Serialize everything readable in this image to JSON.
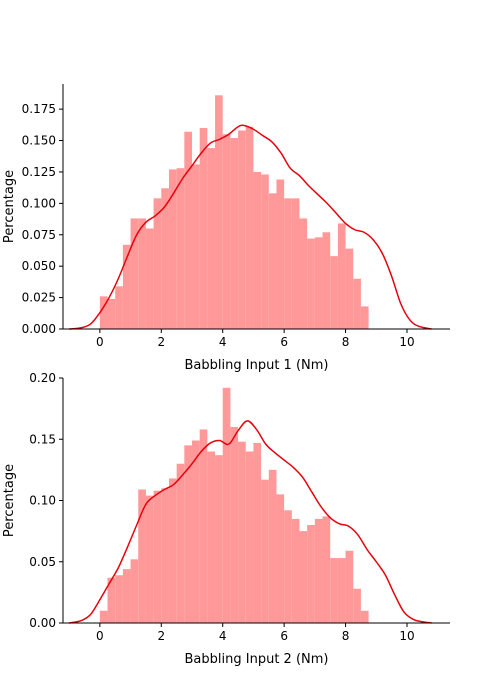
{
  "colors": {
    "bar": "#ff9999",
    "kde": "#e8000b",
    "axis": "#000000"
  },
  "chart_data": [
    {
      "type": "bar",
      "subtype": "histogram-with-kde",
      "xlabel": "Babbling Input 1 (Nm)",
      "ylabel": "Percentage",
      "xlim": [
        -1.2,
        11.4
      ],
      "ylim": [
        0,
        0.195
      ],
      "xticks": [
        0,
        2,
        4,
        6,
        8,
        10
      ],
      "yticks": [
        0.0,
        0.025,
        0.05,
        0.075,
        0.1,
        0.125,
        0.15,
        0.175
      ],
      "ytick_labels": [
        "0.000",
        "0.025",
        "0.050",
        "0.075",
        "0.100",
        "0.125",
        "0.150",
        "0.175"
      ],
      "bin_start": 0.0,
      "bin_width": 0.25,
      "values": [
        0.026,
        0.024,
        0.034,
        0.067,
        0.088,
        0.088,
        0.08,
        0.104,
        0.112,
        0.127,
        0.128,
        0.157,
        0.131,
        0.16,
        0.144,
        0.186,
        0.155,
        0.152,
        0.158,
        0.161,
        0.125,
        0.123,
        0.108,
        0.119,
        0.104,
        0.104,
        0.088,
        0.072,
        0.073,
        0.077,
        0.058,
        0.084,
        0.064,
        0.04,
        0.018
      ],
      "kde_x": [
        -1.0,
        -0.6,
        -0.3,
        0.0,
        0.3,
        0.6,
        0.9,
        1.2,
        1.5,
        1.8,
        2.1,
        2.4,
        2.7,
        3.0,
        3.3,
        3.6,
        3.9,
        4.2,
        4.5,
        4.7,
        5.0,
        5.3,
        5.6,
        5.9,
        6.2,
        6.5,
        6.8,
        7.1,
        7.4,
        7.7,
        8.0,
        8.3,
        8.6,
        8.9,
        9.2,
        9.5,
        9.8,
        10.1,
        10.4,
        10.8
      ],
      "kde_y": [
        0.0,
        0.001,
        0.004,
        0.013,
        0.025,
        0.04,
        0.058,
        0.075,
        0.085,
        0.09,
        0.097,
        0.108,
        0.12,
        0.13,
        0.14,
        0.148,
        0.151,
        0.155,
        0.161,
        0.162,
        0.159,
        0.154,
        0.149,
        0.14,
        0.128,
        0.122,
        0.114,
        0.107,
        0.1,
        0.092,
        0.084,
        0.079,
        0.077,
        0.071,
        0.06,
        0.042,
        0.02,
        0.007,
        0.002,
        0.0
      ]
    },
    {
      "type": "bar",
      "subtype": "histogram-with-kde",
      "xlabel": "Babbling Input 2 (Nm)",
      "ylabel": "Percentage",
      "xlim": [
        -1.2,
        11.4
      ],
      "ylim": [
        0,
        0.2
      ],
      "xticks": [
        0,
        2,
        4,
        6,
        8,
        10
      ],
      "yticks": [
        0.0,
        0.05,
        0.1,
        0.15,
        0.2
      ],
      "ytick_labels": [
        "0.00",
        "0.05",
        "0.10",
        "0.15",
        "0.20"
      ],
      "bin_start": 0.0,
      "bin_width": 0.25,
      "values": [
        0.01,
        0.037,
        0.039,
        0.044,
        0.052,
        0.109,
        0.104,
        0.108,
        0.11,
        0.118,
        0.13,
        0.145,
        0.149,
        0.158,
        0.14,
        0.137,
        0.192,
        0.16,
        0.148,
        0.14,
        0.147,
        0.117,
        0.125,
        0.105,
        0.092,
        0.085,
        0.075,
        0.08,
        0.085,
        0.087,
        0.053,
        0.053,
        0.059,
        0.028,
        0.01
      ],
      "kde_x": [
        -1.0,
        -0.6,
        -0.3,
        0.0,
        0.3,
        0.6,
        0.9,
        1.2,
        1.5,
        1.8,
        2.1,
        2.4,
        2.7,
        3.0,
        3.3,
        3.6,
        3.9,
        4.2,
        4.5,
        4.8,
        5.1,
        5.4,
        5.7,
        6.0,
        6.3,
        6.6,
        6.9,
        7.2,
        7.5,
        7.8,
        8.1,
        8.4,
        8.7,
        9.0,
        9.3,
        9.6,
        9.9,
        10.2,
        10.5,
        10.8
      ],
      "kde_y": [
        0.0,
        0.002,
        0.007,
        0.019,
        0.032,
        0.045,
        0.062,
        0.08,
        0.097,
        0.104,
        0.109,
        0.113,
        0.121,
        0.13,
        0.14,
        0.147,
        0.149,
        0.146,
        0.157,
        0.165,
        0.158,
        0.146,
        0.139,
        0.133,
        0.127,
        0.119,
        0.107,
        0.095,
        0.086,
        0.081,
        0.079,
        0.072,
        0.06,
        0.05,
        0.039,
        0.023,
        0.009,
        0.003,
        0.001,
        0.0
      ]
    }
  ]
}
